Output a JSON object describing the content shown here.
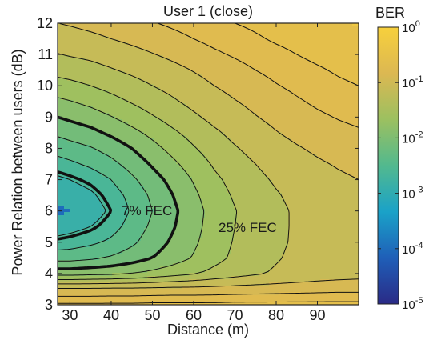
{
  "chart_data": {
    "type": "heatmap",
    "title": "User 1 (close)",
    "xlabel": "Distance (m)",
    "ylabel": "Power Relation between users (dB)",
    "xlim": [
      27,
      100
    ],
    "ylim": [
      3,
      12
    ],
    "x_ticks": [
      "30",
      "40",
      "50",
      "60",
      "70",
      "80",
      "90"
    ],
    "x_tick_values": [
      30,
      40,
      50,
      60,
      70,
      80,
      90
    ],
    "y_ticks": [
      "3",
      "4",
      "5",
      "6",
      "7",
      "8",
      "9",
      "10",
      "11",
      "12"
    ],
    "y_tick_values": [
      3,
      4,
      5,
      6,
      7,
      8,
      9,
      10,
      11,
      12
    ],
    "colorbar": {
      "label": "BER",
      "scale": "log",
      "range": [
        1e-05,
        1
      ],
      "ticks": [
        {
          "base": "10",
          "exp": "0",
          "value": 0
        },
        {
          "base": "10",
          "exp": "-1",
          "value": -1
        },
        {
          "base": "10",
          "exp": "-2",
          "value": -2
        },
        {
          "base": "10",
          "exp": "-3",
          "value": -3
        },
        {
          "base": "10",
          "exp": "-4",
          "value": -4
        },
        {
          "base": "10",
          "exp": "-5",
          "value": -5
        }
      ],
      "colormap": [
        "#2a2a86",
        "#1f5fb8",
        "#1aa2c8",
        "#52b98e",
        "#9cc060",
        "#dcb852",
        "#f7d03c"
      ]
    },
    "annotations": [
      {
        "text": "7% FEC",
        "x": 45.5,
        "y": 5.9
      },
      {
        "text": "25% FEC",
        "x": 75,
        "y": 5.1
      }
    ],
    "log10_ber_grid": {
      "x": [
        27,
        30,
        35,
        40,
        45,
        50,
        55,
        60,
        65,
        70,
        75,
        80,
        85,
        90,
        95,
        100
      ],
      "y": [
        3,
        3.5,
        4,
        4.5,
        5,
        5.5,
        6,
        6.5,
        7,
        7.5,
        8,
        8.5,
        9,
        9.5,
        10,
        10.5,
        11,
        11.5,
        12
      ],
      "z": [
        [
          -0.62,
          -0.62,
          -0.62,
          -0.62,
          -0.62,
          -0.61,
          -0.61,
          -0.61,
          -0.61,
          -0.6,
          -0.6,
          -0.6,
          -0.6,
          -0.6,
          -0.6,
          -0.6
        ],
        [
          -0.95,
          -0.95,
          -0.95,
          -0.94,
          -0.94,
          -0.93,
          -0.92,
          -0.92,
          -0.91,
          -0.9,
          -0.89,
          -0.88,
          -0.87,
          -0.86,
          -0.85,
          -0.85
        ],
        [
          -1.85,
          -1.85,
          -1.82,
          -1.8,
          -1.75,
          -1.68,
          -1.6,
          -1.52,
          -1.43,
          -1.35,
          -1.28,
          -1.22,
          -1.17,
          -1.13,
          -1.1,
          -1.08
        ],
        [
          -2.35,
          -2.35,
          -2.3,
          -2.22,
          -2.12,
          -2.0,
          -1.87,
          -1.73,
          -1.58,
          -1.45,
          -1.34,
          -1.27,
          -1.2,
          -1.15,
          -1.12,
          -1.1
        ],
        [
          -2.65,
          -2.62,
          -2.55,
          -2.45,
          -2.3,
          -2.12,
          -1.96,
          -1.79,
          -1.62,
          -1.48,
          -1.37,
          -1.29,
          -1.22,
          -1.16,
          -1.13,
          -1.1
        ],
        [
          -2.9,
          -2.85,
          -2.75,
          -2.6,
          -2.4,
          -2.2,
          -2.02,
          -1.83,
          -1.64,
          -1.5,
          -1.39,
          -1.3,
          -1.22,
          -1.16,
          -1.12,
          -1.09
        ],
        [
          -3.05,
          -3.0,
          -2.9,
          -2.7,
          -2.47,
          -2.25,
          -2.05,
          -1.85,
          -1.65,
          -1.51,
          -1.4,
          -1.3,
          -1.22,
          -1.16,
          -1.11,
          -1.07
        ],
        [
          -2.95,
          -2.9,
          -2.8,
          -2.62,
          -2.42,
          -2.2,
          -2.0,
          -1.8,
          -1.61,
          -1.47,
          -1.36,
          -1.27,
          -1.19,
          -1.13,
          -1.08,
          -1.04
        ],
        [
          -2.8,
          -2.75,
          -2.65,
          -2.5,
          -2.3,
          -2.1,
          -1.92,
          -1.73,
          -1.55,
          -1.42,
          -1.31,
          -1.22,
          -1.15,
          -1.09,
          -1.04,
          -1.0
        ],
        [
          -2.6,
          -2.55,
          -2.45,
          -2.32,
          -2.15,
          -1.97,
          -1.8,
          -1.63,
          -1.47,
          -1.35,
          -1.25,
          -1.16,
          -1.09,
          -1.03,
          -0.98,
          -0.94
        ],
        [
          -2.4,
          -2.35,
          -2.27,
          -2.15,
          -2.0,
          -1.83,
          -1.67,
          -1.52,
          -1.38,
          -1.27,
          -1.17,
          -1.09,
          -1.02,
          -0.96,
          -0.91,
          -0.88
        ],
        [
          -2.2,
          -2.15,
          -2.07,
          -1.95,
          -1.82,
          -1.68,
          -1.54,
          -1.41,
          -1.29,
          -1.18,
          -1.09,
          -1.01,
          -0.94,
          -0.89,
          -0.85,
          -0.82
        ],
        [
          -2.0,
          -1.95,
          -1.87,
          -1.76,
          -1.64,
          -1.52,
          -1.4,
          -1.29,
          -1.18,
          -1.09,
          -1.01,
          -0.94,
          -0.88,
          -0.83,
          -0.79,
          -0.76
        ],
        [
          -1.8,
          -1.76,
          -1.68,
          -1.58,
          -1.48,
          -1.38,
          -1.28,
          -1.18,
          -1.09,
          -1.01,
          -0.94,
          -0.88,
          -0.82,
          -0.77,
          -0.73,
          -0.7
        ],
        [
          -1.6,
          -1.57,
          -1.5,
          -1.42,
          -1.34,
          -1.25,
          -1.17,
          -1.08,
          -1.0,
          -0.93,
          -0.87,
          -0.81,
          -0.76,
          -0.72,
          -0.68,
          -0.65
        ],
        [
          -1.42,
          -1.39,
          -1.34,
          -1.27,
          -1.2,
          -1.13,
          -1.06,
          -0.99,
          -0.92,
          -0.86,
          -0.8,
          -0.75,
          -0.71,
          -0.67,
          -0.63,
          -0.6
        ],
        [
          -1.26,
          -1.23,
          -1.19,
          -1.13,
          -1.07,
          -1.01,
          -0.95,
          -0.89,
          -0.83,
          -0.78,
          -0.73,
          -0.69,
          -0.65,
          -0.61,
          -0.58,
          -0.56
        ],
        [
          -1.12,
          -1.09,
          -1.05,
          -1.0,
          -0.95,
          -0.9,
          -0.85,
          -0.8,
          -0.75,
          -0.71,
          -0.67,
          -0.63,
          -0.6,
          -0.57,
          -0.54,
          -0.52
        ],
        [
          -1.0,
          -0.98,
          -0.94,
          -0.9,
          -0.85,
          -0.81,
          -0.77,
          -0.73,
          -0.69,
          -0.65,
          -0.62,
          -0.59,
          -0.56,
          -0.53,
          -0.51,
          -0.49
        ]
      ],
      "thin_contour_levels": [
        -2.75,
        -2.5,
        -2.25,
        -1.75,
        -1.5,
        -1.25,
        -1.0,
        -0.8,
        -0.65
      ],
      "thick_contour_levels": [
        -2.0,
        -2.7
      ]
    }
  }
}
